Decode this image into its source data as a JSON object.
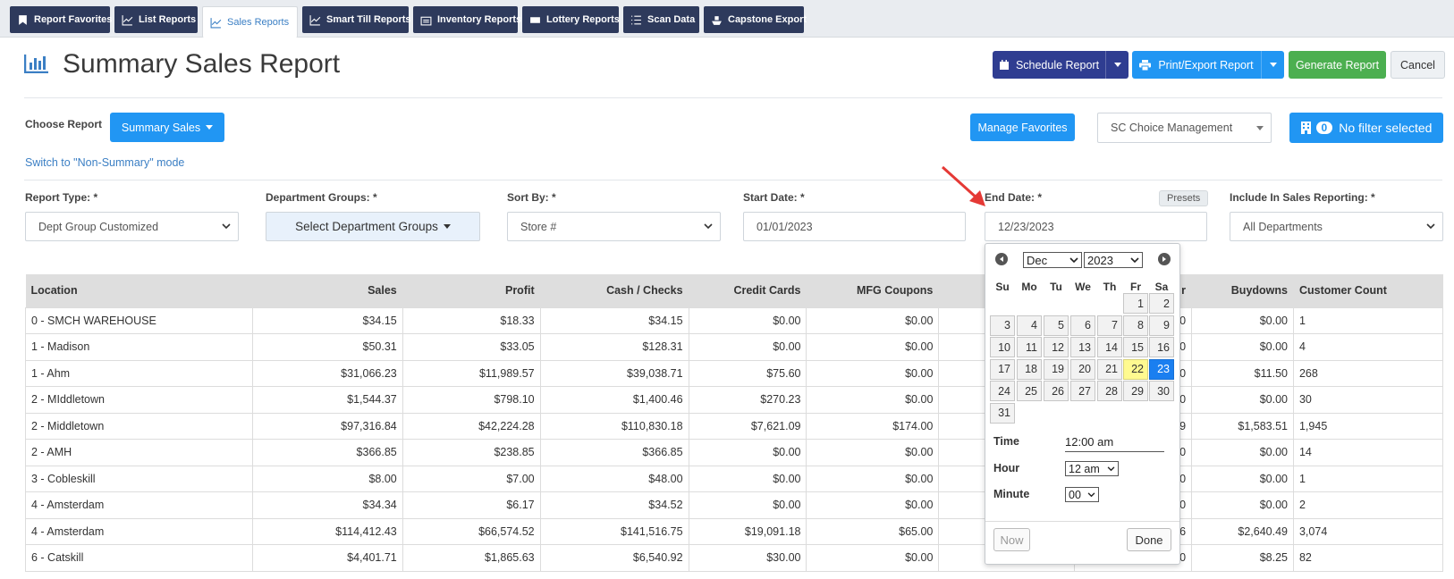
{
  "tabs": [
    {
      "label": "Report Favorites",
      "icon": "bookmark-icon",
      "active": false
    },
    {
      "label": "List Reports",
      "icon": "chart-line-icon",
      "active": false
    },
    {
      "label": "Sales Reports",
      "icon": "chart-line-icon",
      "active": true
    },
    {
      "label": "Smart Till Reports",
      "icon": "chart-line-icon",
      "active": false
    },
    {
      "label": "Inventory Reports",
      "icon": "warehouse-icon",
      "active": false
    },
    {
      "label": "Lottery Reports",
      "icon": "ticket-icon",
      "active": false
    },
    {
      "label": "Scan Data",
      "icon": "list-icon",
      "active": false
    },
    {
      "label": "Capstone Export",
      "icon": "ship-icon",
      "active": false
    }
  ],
  "header": {
    "title": "Summary Sales Report",
    "schedule_label": "Schedule Report",
    "print_label": "Print/Export Report",
    "generate_label": "Generate Report",
    "cancel_label": "Cancel"
  },
  "controls": {
    "choose_report_label": "Choose Report",
    "report_dropdown": "Summary Sales",
    "switch_mode_link": "Switch to \"Non-Summary\" mode",
    "manage_favorites": "Manage Favorites",
    "company_select": "SC Choice Management",
    "filter_count": "0",
    "filter_label": "No filter selected"
  },
  "filters": {
    "report_type": {
      "label": "Report Type: *",
      "value": "Dept Group Customized"
    },
    "dept_groups": {
      "label": "Department Groups: *",
      "value": "Select Department Groups"
    },
    "sort_by": {
      "label": "Sort By: *",
      "value": "Store #"
    },
    "start_date": {
      "label": "Start Date: *",
      "value": "01/01/2023"
    },
    "end_date": {
      "label": "End Date: *",
      "value": "12/23/2023",
      "presets": "Presets"
    },
    "include": {
      "label": "Include In Sales Reporting: *",
      "value": "All Departments"
    }
  },
  "table": {
    "headers": [
      "Location",
      "Sales",
      "Profit",
      "Cash / Checks",
      "Credit Cards",
      "MFG Coupons",
      "",
      "r",
      "Buydowns",
      "Customer Count"
    ],
    "rows": [
      [
        "0 - SMCH WAREHOUSE",
        "$34.15",
        "$18.33",
        "$34.15",
        "$0.00",
        "$0.00",
        "",
        "0",
        "$0.00",
        "1"
      ],
      [
        "1 - Madison",
        "$50.31",
        "$33.05",
        "$128.31",
        "$0.00",
        "$0.00",
        "",
        "0",
        "$0.00",
        "4"
      ],
      [
        "1 - Ahm",
        "$31,066.23",
        "$11,989.57",
        "$39,038.71",
        "$75.60",
        "$0.00",
        "",
        "0",
        "$11.50",
        "268"
      ],
      [
        "2 - MIddletown",
        "$1,544.37",
        "$798.10",
        "$1,400.46",
        "$270.23",
        "$0.00",
        "",
        "0",
        "$0.00",
        "30"
      ],
      [
        "2 - Middletown",
        "$97,316.84",
        "$42,224.28",
        "$110,830.18",
        "$7,621.09",
        "$174.00",
        "",
        "9",
        "$1,583.51",
        "1,945"
      ],
      [
        "2 - AMH",
        "$366.85",
        "$238.85",
        "$366.85",
        "$0.00",
        "$0.00",
        "",
        "0",
        "$0.00",
        "14"
      ],
      [
        "3 - Cobleskill",
        "$8.00",
        "$7.00",
        "$48.00",
        "$0.00",
        "$0.00",
        "",
        "0",
        "$0.00",
        "1"
      ],
      [
        "4 - Amsterdam",
        "$34.34",
        "$6.17",
        "$34.52",
        "$0.00",
        "$0.00",
        "",
        "0",
        "$0.00",
        "2"
      ],
      [
        "4 - Amsterdam",
        "$114,412.43",
        "$66,574.52",
        "$141,516.75",
        "$19,091.18",
        "$65.00",
        "",
        "6",
        "$2,640.49",
        "3,074"
      ],
      [
        "6 - Catskill",
        "$4,401.71",
        "$1,865.63",
        "$6,540.92",
        "$30.00",
        "$0.00",
        "",
        "0",
        "$8.25",
        "82"
      ]
    ]
  },
  "datepicker": {
    "month": "Dec",
    "year": "2023",
    "weekdays": [
      "Su",
      "Mo",
      "Tu",
      "We",
      "Th",
      "Fr",
      "Sa"
    ],
    "days": [
      "1",
      "2",
      "3",
      "4",
      "5",
      "6",
      "7",
      "8",
      "9",
      "10",
      "11",
      "12",
      "13",
      "14",
      "15",
      "16",
      "17",
      "18",
      "19",
      "20",
      "21",
      "22",
      "23",
      "24",
      "25",
      "26",
      "27",
      "28",
      "29",
      "30",
      "31"
    ],
    "first_weekday_index": 5,
    "today": "22",
    "selected": "23",
    "time_label": "Time",
    "time_value": "12:00 am",
    "hour_label": "Hour",
    "hour_value": "12 am",
    "minute_label": "Minute",
    "minute_value": "00",
    "now_label": "Now",
    "done_label": "Done"
  },
  "colors": {
    "tab_dark": "#2e3a5c",
    "accent_blue": "#2196f3",
    "schedule": "#2f3d91",
    "generate": "#4caf50",
    "today": "#fffa90",
    "selected": "#1a7ff0",
    "arrow": "#e53935"
  }
}
